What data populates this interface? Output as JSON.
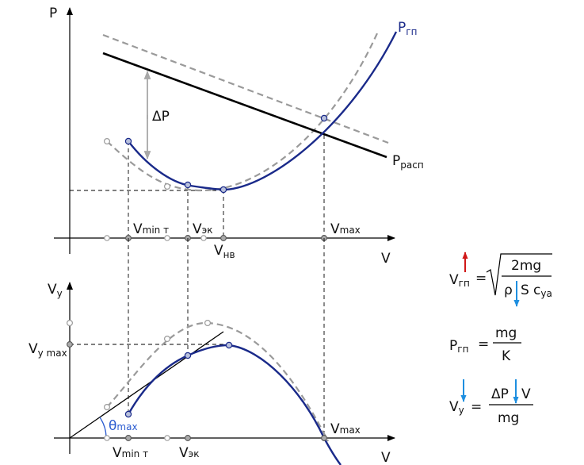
{
  "colors": {
    "curve": "#1a2a8a",
    "dashed_curve": "#9a9a9a",
    "available_thrust": "#000000",
    "arrow_up": "#d01818",
    "arrow_down": "#1e8fe0",
    "theta": "#2a5bd0",
    "point_fill": "#b8c0dc",
    "hollow_point": "#9a9a9a"
  },
  "top_graph": {
    "y_axis": "P",
    "x_axis": "V",
    "required_curve_label": {
      "main": "P",
      "sub": "гп"
    },
    "available_line_label": {
      "main": "P",
      "sub": "расп"
    },
    "delta_label": "ΔP",
    "tick_labels": {
      "vmin_t": {
        "main": "V",
        "sub": "min т"
      },
      "vek": {
        "main": "V",
        "sub": "эк"
      },
      "vnv": {
        "main": "V",
        "sub": "нв"
      },
      "vmax": {
        "main": "V",
        "sub": "max"
      }
    }
  },
  "bottom_graph": {
    "y_axis": {
      "main": "V",
      "sub": "y"
    },
    "x_axis": "V",
    "vy_max_label": {
      "main": "V",
      "sub": "y max"
    },
    "theta_label": {
      "main": "θ",
      "sub": "max"
    },
    "tick_labels": {
      "vmin_t": {
        "main": "V",
        "sub": "min т"
      },
      "vek": {
        "main": "V",
        "sub": "эк"
      },
      "vmax": {
        "main": "V",
        "sub": "max"
      }
    }
  },
  "formulas": {
    "f1": {
      "lhs_main": "V",
      "lhs_sub": "гп",
      "equals": "=",
      "numerator": "2mg",
      "den_rho": "ρ",
      "den_s": "S",
      "den_c": "c",
      "den_c_sub": "ya"
    },
    "f2": {
      "lhs_main": "P",
      "lhs_sub": "гп",
      "equals": "=",
      "numerator": "mg",
      "denominator": "K"
    },
    "f3": {
      "lhs_main": "V",
      "lhs_sub": "y",
      "equals": "=",
      "num_dp": "ΔP",
      "num_v": "V",
      "denominator": "mg"
    }
  }
}
